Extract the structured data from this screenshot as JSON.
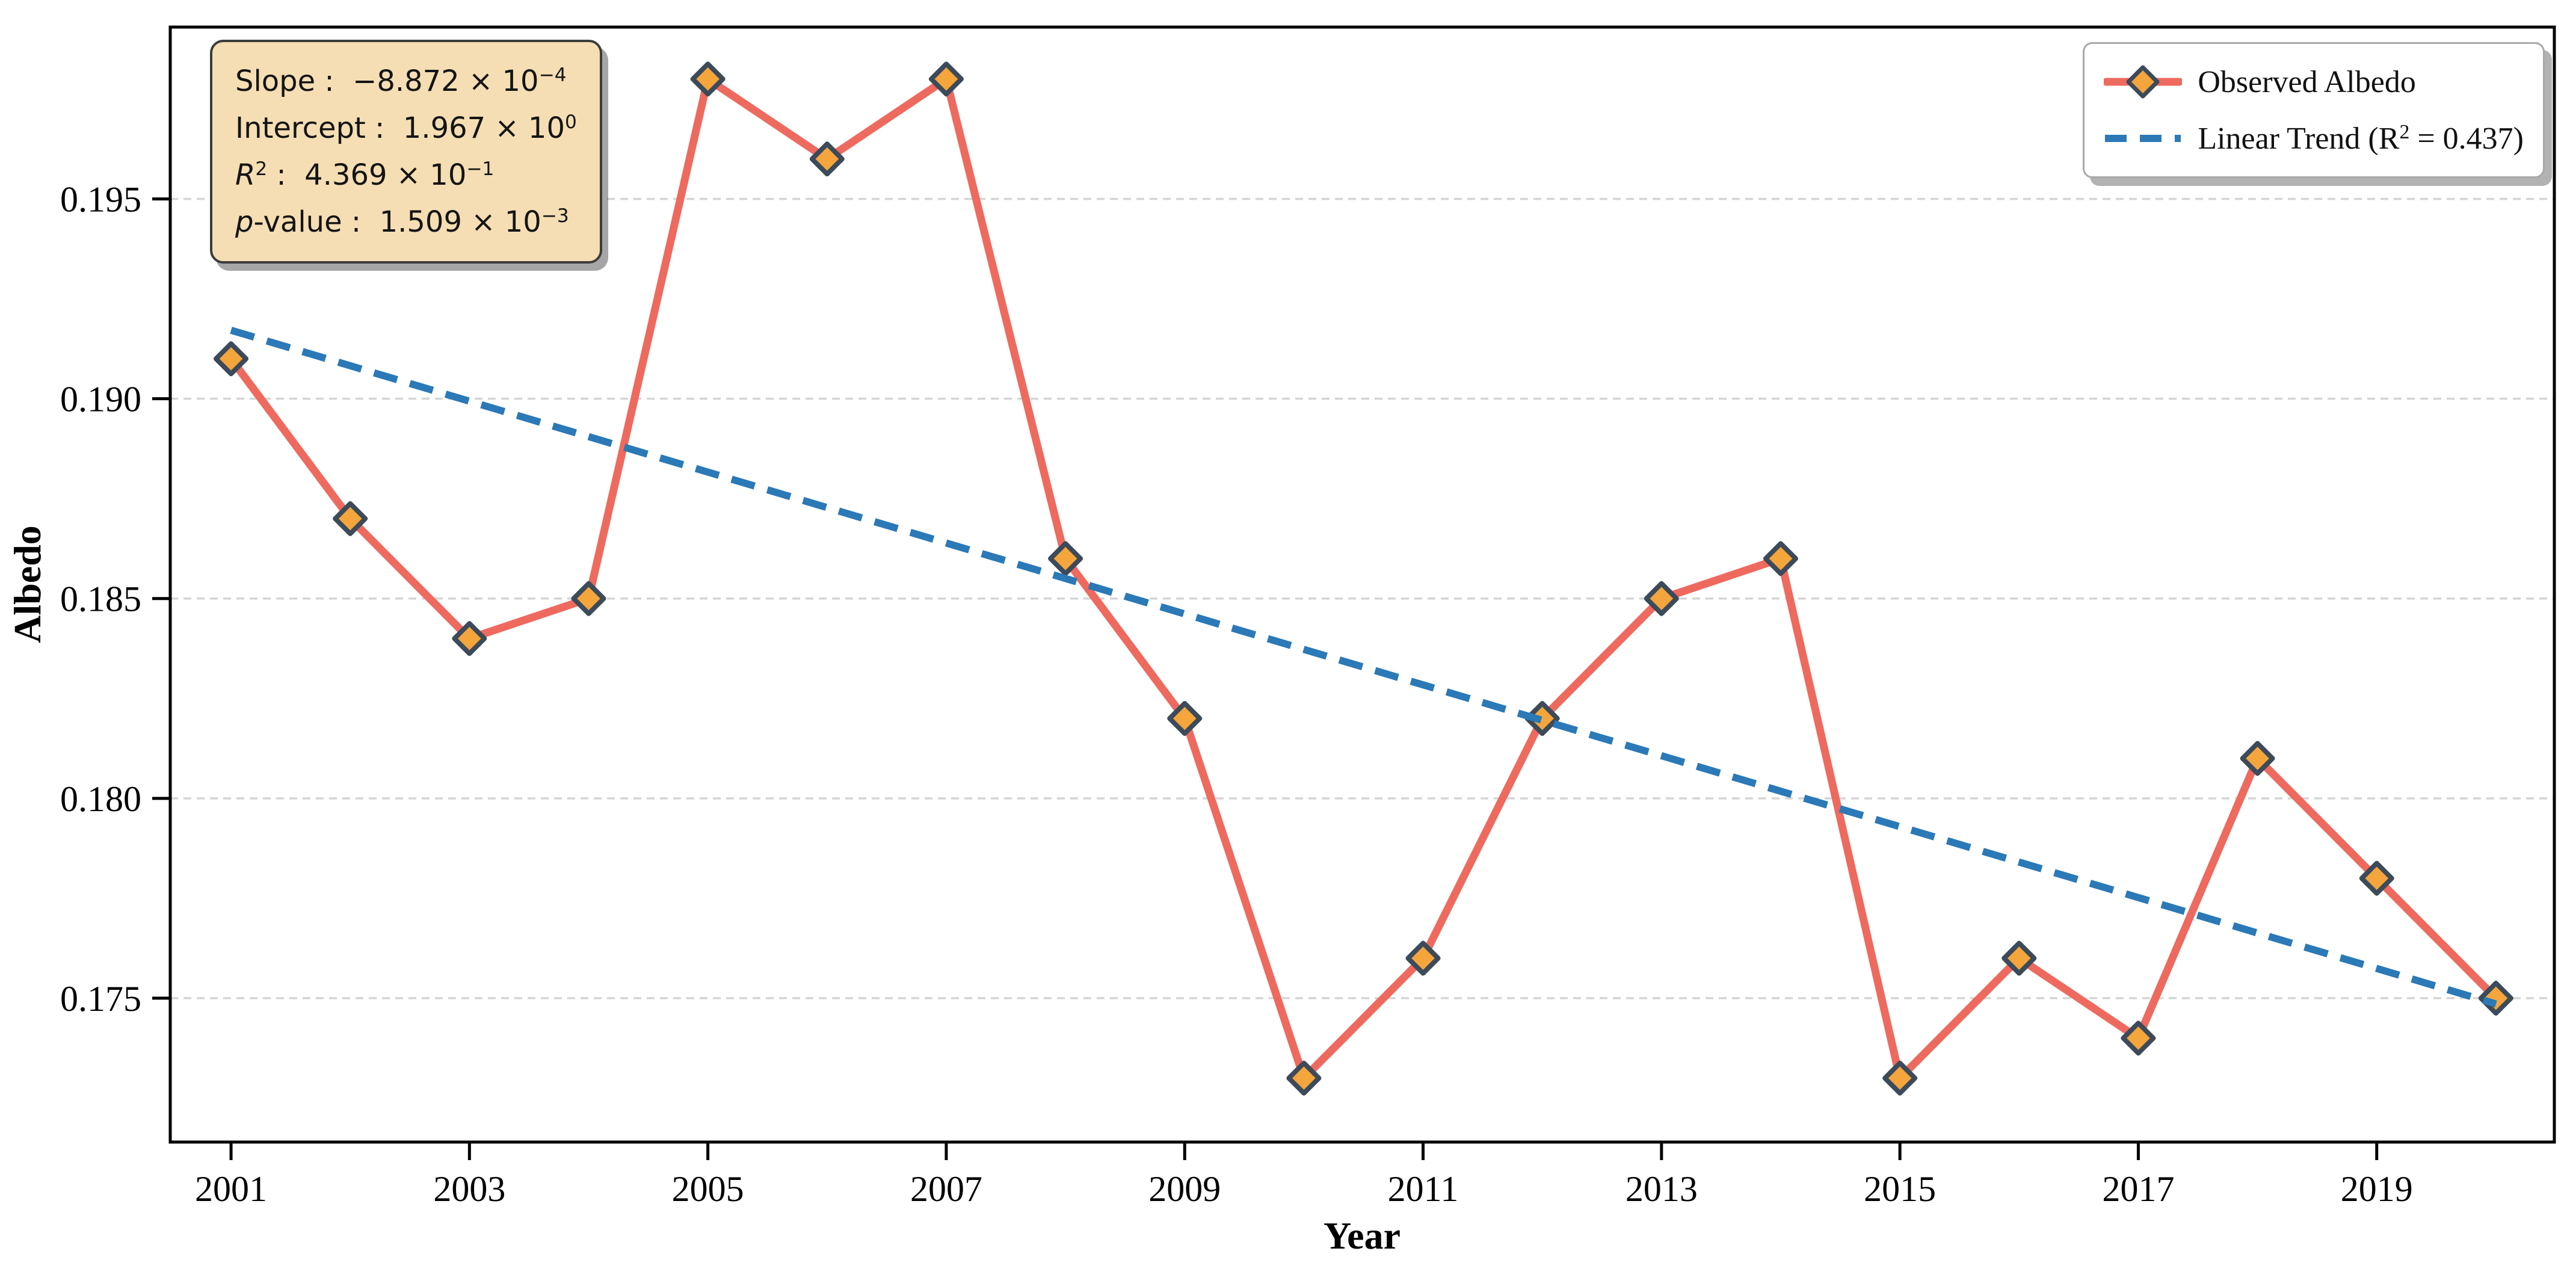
{
  "chart": {
    "ylabel": "Albedo",
    "xlabel": "Year"
  },
  "stats_box": {
    "sep": " :  ",
    "lines": [
      {
        "name": "Slope",
        "base": "−8.872 × 10",
        "exp": "−4"
      },
      {
        "name": "Intercept",
        "base": "1.967 × 10",
        "exp": "0"
      },
      {
        "name": "R",
        "name_sup": "2",
        "base": "4.369 × 10",
        "exp": "−1"
      },
      {
        "name": "p",
        "name_rest": "-value",
        "base": "1.509 × 10",
        "exp": "−3"
      }
    ]
  },
  "legend": {
    "observed_label": "Observed Albedo",
    "trend_pre": "Linear Trend (R",
    "trend_sup": "2",
    "trend_post": " = 0.437)"
  },
  "chart_data": {
    "type": "line",
    "title": "",
    "xlabel": "Year",
    "ylabel": "Albedo",
    "x": [
      2001,
      2002,
      2003,
      2004,
      2005,
      2006,
      2007,
      2008,
      2009,
      2010,
      2011,
      2012,
      2013,
      2014,
      2015,
      2016,
      2017,
      2018,
      2019,
      2020
    ],
    "series": [
      {
        "name": "Observed Albedo",
        "style": "solid-line-diamond-markers",
        "values": [
          0.191,
          0.187,
          0.184,
          0.185,
          0.198,
          0.196,
          0.198,
          0.186,
          0.182,
          0.173,
          0.176,
          0.182,
          0.185,
          0.186,
          0.173,
          0.176,
          0.174,
          0.181,
          0.178,
          0.175
        ]
      },
      {
        "name": "Linear Trend (R² = 0.437)",
        "style": "dashed-trendline",
        "slope": -0.0008872,
        "intercept": 1.967,
        "r_squared": 0.437,
        "p_value": 0.001509,
        "x_start": 2001,
        "x_end": 2020
      }
    ],
    "xlim": [
      2000.49,
      2020.49
    ],
    "ylim": [
      0.1714,
      0.1993
    ],
    "x_ticks": [
      2001,
      2003,
      2005,
      2007,
      2009,
      2011,
      2013,
      2015,
      2017,
      2019
    ],
    "y_ticks": [
      0.175,
      0.18,
      0.185,
      0.19,
      0.195
    ],
    "y_tick_decimals": 3,
    "grid": "horizontal dashed",
    "legend_position": "upper right",
    "colors": {
      "observed_line": "#ee6a5f",
      "marker_face": "#f4a53c",
      "marker_edge": "#3c4a5a",
      "trend_line": "#2b79b7",
      "grid": "#d5d5d5",
      "axes": "#000000",
      "stats_box_bg": "#f5deb3",
      "background": "#ffffff"
    }
  }
}
